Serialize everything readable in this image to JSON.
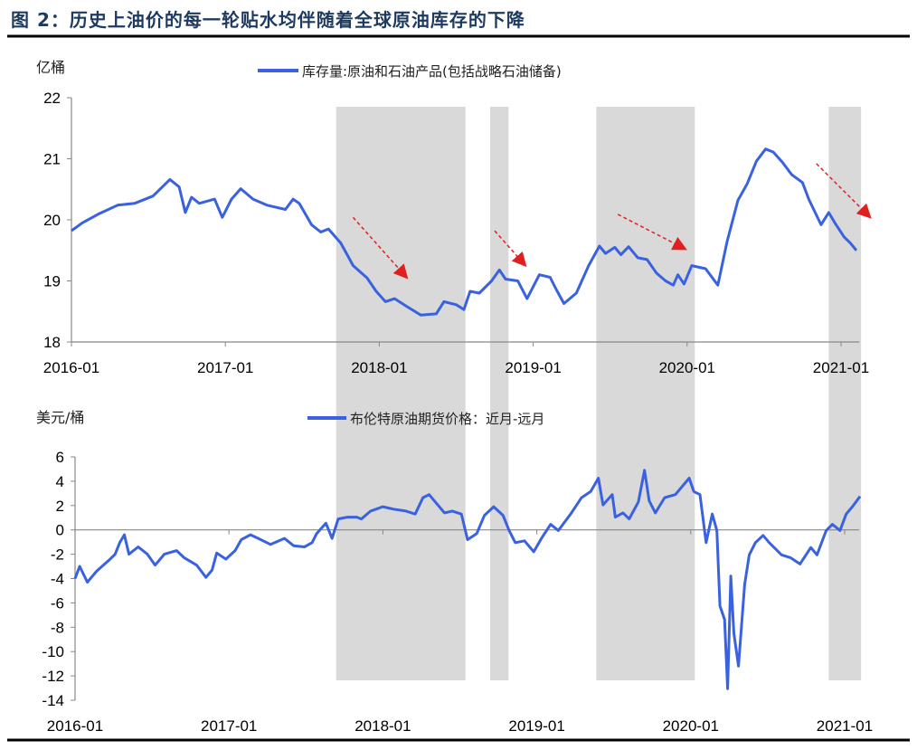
{
  "title": "图 2：历史上油价的每一轮贴水均伴随着全球原油库存的下降",
  "colors": {
    "line": "#3a62e0",
    "shade": "#d9d9d9",
    "arrow": "#e02020",
    "title": "#1f3a5f"
  },
  "shaded_periods": [
    [
      2017.72,
      2018.56
    ],
    [
      2018.72,
      2018.84
    ],
    [
      2019.41,
      2020.05
    ],
    [
      2020.92,
      2021.13
    ]
  ],
  "chart_data": [
    {
      "type": "line",
      "ylabel": "亿桶",
      "ylim": [
        18,
        22
      ],
      "yticks": [
        "18",
        "19",
        "20",
        "21",
        "22"
      ],
      "xticks": [
        "2016-01",
        "2017-01",
        "2018-01",
        "2019-01",
        "2020-01",
        "2021-01"
      ],
      "grid": false,
      "legend": "top-center",
      "series": [
        {
          "name": "库存量:原油和石油产品(包括战略石油储备)",
          "x": [
            2016.0,
            2016.07,
            2016.18,
            2016.3,
            2016.41,
            2016.53,
            2016.64,
            2016.7,
            2016.74,
            2016.78,
            2016.83,
            2016.93,
            2016.98,
            2017.04,
            2017.1,
            2017.18,
            2017.27,
            2017.39,
            2017.44,
            2017.48,
            2017.56,
            2017.62,
            2017.67,
            2017.75,
            2017.83,
            2017.92,
            2017.98,
            2018.04,
            2018.1,
            2018.18,
            2018.27,
            2018.37,
            2018.42,
            2018.5,
            2018.55,
            2018.59,
            2018.65,
            2018.73,
            2018.78,
            2018.82,
            2018.9,
            2018.96,
            2019.04,
            2019.11,
            2019.15,
            2019.2,
            2019.28,
            2019.36,
            2019.43,
            2019.47,
            2019.53,
            2019.57,
            2019.62,
            2019.68,
            2019.74,
            2019.8,
            2019.86,
            2019.91,
            2019.94,
            2019.98,
            2020.03,
            2020.12,
            2020.2,
            2020.26,
            2020.33,
            2020.39,
            2020.45,
            2020.51,
            2020.56,
            2020.62,
            2020.68,
            2020.75,
            2020.79,
            2020.87,
            2020.92,
            2020.96,
            2021.02,
            2021.06,
            2021.1
          ],
          "y": [
            19.82,
            19.95,
            20.1,
            20.24,
            20.27,
            20.39,
            20.66,
            20.54,
            20.12,
            20.37,
            20.27,
            20.34,
            20.04,
            20.34,
            20.51,
            20.34,
            20.24,
            20.17,
            20.34,
            20.27,
            19.92,
            19.8,
            19.85,
            19.62,
            19.25,
            19.05,
            18.83,
            18.66,
            18.71,
            18.58,
            18.44,
            18.46,
            18.66,
            18.61,
            18.53,
            18.83,
            18.8,
            19.0,
            19.18,
            19.03,
            19.0,
            18.71,
            19.1,
            19.06,
            18.86,
            18.63,
            18.8,
            19.25,
            19.57,
            19.45,
            19.55,
            19.43,
            19.56,
            19.38,
            19.35,
            19.13,
            19.0,
            18.93,
            19.1,
            18.95,
            19.25,
            19.2,
            18.93,
            19.65,
            20.32,
            20.59,
            20.96,
            21.16,
            21.11,
            20.94,
            20.74,
            20.61,
            20.34,
            19.92,
            20.12,
            19.95,
            19.72,
            19.62,
            19.5
          ]
        }
      ],
      "annotations": [
        {
          "type": "arrow",
          "from": [
            2017.83,
            20.04
          ],
          "to": [
            2018.18,
            19.05
          ]
        },
        {
          "type": "arrow",
          "from": [
            2018.75,
            19.82
          ],
          "to": [
            2018.95,
            19.25
          ]
        },
        {
          "type": "arrow",
          "from": [
            2019.55,
            20.09
          ],
          "to": [
            2019.99,
            19.52
          ]
        },
        {
          "type": "arrow",
          "from": [
            2020.84,
            20.92
          ],
          "to": [
            2021.19,
            20.04
          ]
        }
      ]
    },
    {
      "type": "line",
      "ylabel": "美元/桶",
      "ylim": [
        -14,
        6
      ],
      "yticks": [
        "-14",
        "-12",
        "-10",
        "-8",
        "-6",
        "-4",
        "-2",
        "0",
        "2",
        "4",
        "6"
      ],
      "xticks": [
        "2016-01",
        "2017-01",
        "2018-01",
        "2019-01",
        "2020-01",
        "2021-01"
      ],
      "grid": false,
      "legend": "top-center",
      "series": [
        {
          "name": "布伦特原油期货价格：近月-远月",
          "x": [
            2016.0,
            2016.03,
            2016.08,
            2016.14,
            2016.22,
            2016.26,
            2016.29,
            2016.32,
            2016.35,
            2016.41,
            2016.47,
            2016.52,
            2016.58,
            2016.66,
            2016.71,
            2016.79,
            2016.85,
            2016.89,
            2016.92,
            2016.98,
            2017.04,
            2017.08,
            2017.14,
            2017.19,
            2017.27,
            2017.36,
            2017.42,
            2017.49,
            2017.54,
            2017.57,
            2017.63,
            2017.67,
            2017.71,
            2017.77,
            2017.83,
            2017.86,
            2017.92,
            2018.0,
            2018.07,
            2018.15,
            2018.21,
            2018.26,
            2018.3,
            2018.34,
            2018.4,
            2018.45,
            2018.51,
            2018.55,
            2018.61,
            2018.66,
            2018.72,
            2018.78,
            2018.82,
            2018.86,
            2018.92,
            2018.98,
            2019.03,
            2019.09,
            2019.14,
            2019.22,
            2019.29,
            2019.35,
            2019.4,
            2019.43,
            2019.49,
            2019.51,
            2019.56,
            2019.6,
            2019.66,
            2019.7,
            2019.73,
            2019.77,
            2019.83,
            2019.9,
            2019.99,
            2020.02,
            2020.06,
            2020.1,
            2020.14,
            2020.17,
            2020.19,
            2020.22,
            2020.24,
            2020.26,
            2020.28,
            2020.31,
            2020.35,
            2020.38,
            2020.42,
            2020.47,
            2020.51,
            2020.59,
            2020.65,
            2020.71,
            2020.78,
            2020.82,
            2020.88,
            2020.92,
            2020.97,
            2021.01,
            2021.05,
            2021.1
          ],
          "y": [
            -4.0,
            -3.0,
            -4.3,
            -3.4,
            -2.5,
            -2.0,
            -1.05,
            -0.4,
            -2.0,
            -1.4,
            -2.0,
            -2.9,
            -2.0,
            -1.7,
            -2.3,
            -2.9,
            -3.9,
            -3.3,
            -1.9,
            -2.4,
            -1.7,
            -0.8,
            -0.4,
            -0.7,
            -1.2,
            -0.7,
            -1.3,
            -1.4,
            -1.05,
            -0.3,
            0.55,
            -0.7,
            0.9,
            1.05,
            1.05,
            0.9,
            1.55,
            1.9,
            1.7,
            1.55,
            1.3,
            2.65,
            2.9,
            2.3,
            1.4,
            1.55,
            1.3,
            -0.8,
            -0.3,
            1.2,
            1.9,
            1.2,
            -0.05,
            -1.05,
            -0.9,
            -1.8,
            -0.7,
            0.45,
            -0.05,
            1.3,
            2.65,
            3.15,
            4.25,
            2.05,
            2.9,
            1.05,
            1.4,
            0.9,
            2.3,
            4.9,
            2.4,
            1.4,
            2.65,
            2.9,
            4.25,
            3.15,
            2.9,
            -1.05,
            1.3,
            -0.05,
            -6.25,
            -7.35,
            -13.05,
            -3.8,
            -8.5,
            -11.2,
            -4.5,
            -2.05,
            -1.05,
            -0.45,
            -1.05,
            -2.05,
            -2.3,
            -2.8,
            -1.45,
            -2.05,
            -0.05,
            0.45,
            -0.05,
            1.3,
            1.9,
            2.75
          ]
        }
      ]
    }
  ]
}
